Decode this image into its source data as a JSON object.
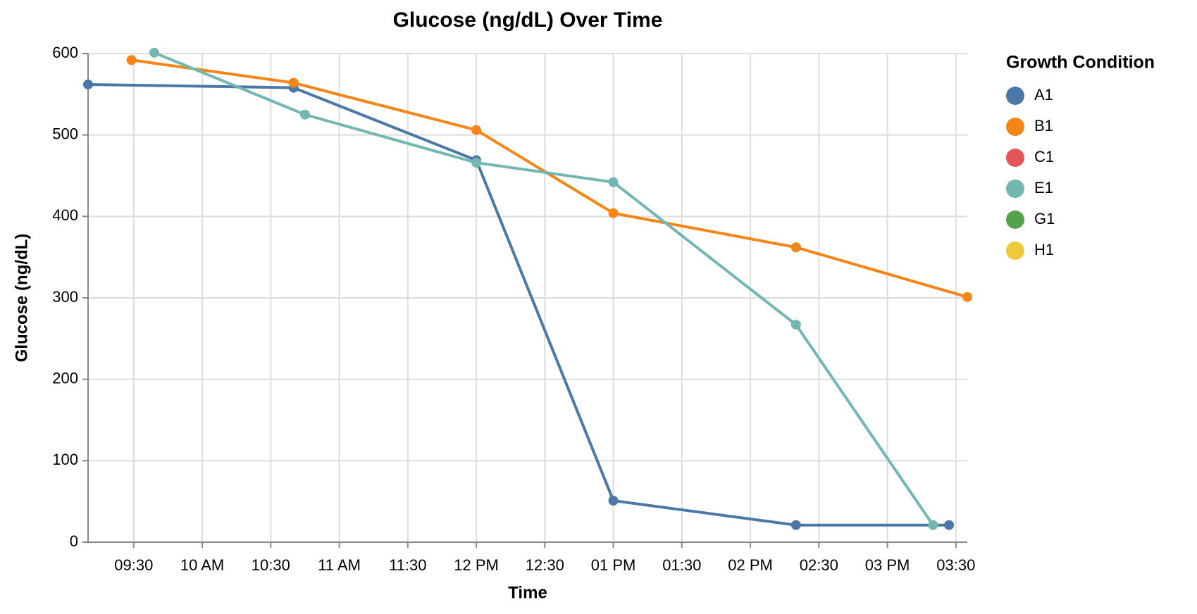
{
  "chart_data": {
    "type": "line",
    "title": "Glucose (ng/dL) Over Time",
    "x_label": "Time",
    "y_label": "Glucose (ng/dL)",
    "legend_title": "Growth Condition",
    "legend": "right",
    "grid": true,
    "xlim": [
      "09:10",
      "15:35"
    ],
    "xticks": [
      "09:30",
      {
        "value": "10:00",
        "label": "10 AM"
      },
      "10:30",
      {
        "value": "11:00",
        "label": "11 AM"
      },
      "11:30",
      {
        "value": "12:00",
        "label": "12 PM"
      },
      {
        "value": "12:30",
        "label": "12:30"
      },
      {
        "value": "13:00",
        "label": "01 PM"
      },
      {
        "value": "13:30",
        "label": "01:30"
      },
      {
        "value": "14:00",
        "label": "02 PM"
      },
      {
        "value": "14:30",
        "label": "02:30"
      },
      {
        "value": "15:00",
        "label": "03 PM"
      },
      {
        "value": "15:30",
        "label": "03:30"
      }
    ],
    "ylim": [
      0,
      600
    ],
    "yticks": [
      0,
      100,
      200,
      300,
      400,
      500,
      600
    ],
    "series": [
      {
        "name": "A1",
        "color": "#4c78a8",
        "x": [
          "09:10",
          "10:40",
          "12:00",
          "13:00",
          "14:20",
          "15:27"
        ],
        "values": [
          562,
          558,
          469,
          51,
          21,
          21
        ]
      },
      {
        "name": "B1",
        "color": "#f58518",
        "x": [
          "09:29",
          "10:40",
          "12:00",
          "13:00",
          "14:20",
          "15:35"
        ],
        "values": [
          592,
          564,
          506,
          404,
          362,
          301
        ]
      },
      {
        "name": "C1",
        "color": "#e45756",
        "x": [],
        "values": []
      },
      {
        "name": "E1",
        "color": "#72b7b2",
        "x": [
          "09:39",
          "10:45",
          "12:00",
          "13:00",
          "14:20",
          "15:20"
        ],
        "values": [
          601,
          525,
          466,
          442,
          267,
          21
        ]
      },
      {
        "name": "G1",
        "color": "#54a24b",
        "x": [],
        "values": []
      },
      {
        "name": "H1",
        "color": "#eeca3b",
        "x": [],
        "values": []
      }
    ]
  }
}
